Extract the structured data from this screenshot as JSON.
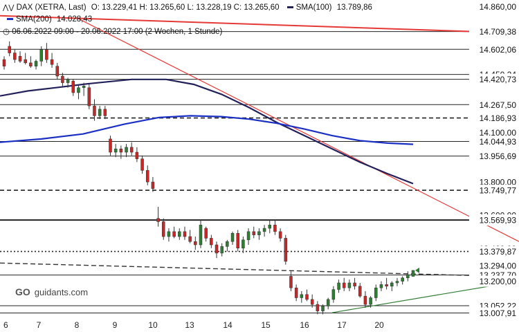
{
  "header": {
    "instrument": "DAX (XETRA, Last)",
    "ohlc": "O: 13.229,41  H: 13.265,60  L: 13.228,19  C: 13.265,60",
    "sma100_label": "SMA(100)",
    "sma100_value": "13.789,86",
    "sma200_label": "SMA(200)",
    "sma200_value": "14.028,43",
    "period": "06.06.2022 09:00 - 20.06.2022 17:00  (2 Wochen, 1 Stunde)"
  },
  "branding": {
    "logo_text": "guidants.com"
  },
  "colors": {
    "up": "#2e7d32",
    "down": "#c62828",
    "sma100": "#22205a",
    "sma200": "#1a2fc4",
    "trend_red": "#e53935",
    "trend_green": "#2e7d32",
    "grid_line": "#222222"
  },
  "chart_data": {
    "type": "candlestick",
    "ylim": [
      12960,
      14900
    ],
    "x_labels": [
      "6",
      "7",
      "8",
      "9",
      "10",
      "13",
      "14",
      "15",
      "16",
      "17",
      "20"
    ],
    "price_labels": [
      "14.860,00",
      "14.709,38",
      "14.602,06",
      "14.450,24",
      "14.420,73",
      "14.267,50",
      "14.186,93",
      "14.100,00",
      "14.044,93",
      "13.956,69",
      "13.800,00",
      "13.749,77",
      "13.600,00",
      "13.569,93",
      "13.400,00",
      "13.379,87",
      "13.294,00",
      "13.237,70",
      "13.200,00",
      "13.052,22",
      "13.007,91"
    ],
    "levels": [
      {
        "value": 14709.38,
        "style": "solid"
      },
      {
        "value": 14602.06,
        "style": "solid"
      },
      {
        "value": 14450.24,
        "style": "solid"
      },
      {
        "value": 14420.73,
        "style": "solid"
      },
      {
        "value": 14267.5,
        "style": "solid"
      },
      {
        "value": 14186.93,
        "style": "dashed"
      },
      {
        "value": 14044.93,
        "style": "solid"
      },
      {
        "value": 13956.69,
        "style": "solid"
      },
      {
        "value": 13749.77,
        "style": "dashed"
      },
      {
        "value": 13569.93,
        "style": "thick"
      },
      {
        "value": 13379.87,
        "style": "dotted"
      },
      {
        "value": 13237.7,
        "style": "solid"
      },
      {
        "value": 13052.22,
        "style": "solid"
      },
      {
        "value": 13007.91,
        "style": "solid"
      }
    ],
    "candles": [
      [
        14540,
        14560,
        14480,
        14500
      ],
      [
        14620,
        14650,
        14560,
        14580
      ],
      [
        14580,
        14600,
        14520,
        14540
      ],
      [
        14560,
        14590,
        14520,
        14530
      ],
      [
        14540,
        14580,
        14510,
        14520
      ],
      [
        14520,
        14560,
        14490,
        14500
      ],
      [
        14500,
        14540,
        14480,
        14530
      ],
      [
        14530,
        14620,
        14500,
        14600
      ],
      [
        14600,
        14640,
        14520,
        14540
      ],
      [
        14540,
        14580,
        14490,
        14510
      ],
      [
        14500,
        14520,
        14420,
        14440
      ],
      [
        14440,
        14460,
        14380,
        14400
      ],
      [
        14400,
        14430,
        14370,
        14420
      ],
      [
        14410,
        14420,
        14320,
        14340
      ],
      [
        14340,
        14390,
        14300,
        14370
      ],
      [
        14370,
        14400,
        14320,
        14380
      ],
      [
        14370,
        14390,
        14240,
        14260
      ],
      [
        14260,
        14300,
        14170,
        14200
      ],
      [
        14200,
        14260,
        14180,
        14240
      ],
      [
        14240,
        14260,
        14180,
        14200
      ],
      [
        14060,
        14080,
        13960,
        13980
      ],
      [
        13980,
        14030,
        13950,
        14000
      ],
      [
        14000,
        14020,
        13940,
        13980
      ],
      [
        13980,
        14030,
        13950,
        14010
      ],
      [
        14010,
        14040,
        13960,
        13980
      ],
      [
        13980,
        14010,
        13920,
        13940
      ],
      [
        13940,
        13960,
        13850,
        13870
      ],
      [
        13870,
        13900,
        13780,
        13800
      ],
      [
        13800,
        13830,
        13740,
        13760
      ],
      [
        13580,
        13650,
        13530,
        13560
      ],
      [
        13560,
        13580,
        13450,
        13470
      ],
      [
        13470,
        13520,
        13440,
        13500
      ],
      [
        13500,
        13530,
        13460,
        13470
      ],
      [
        13470,
        13520,
        13450,
        13500
      ],
      [
        13500,
        13530,
        13450,
        13470
      ],
      [
        13470,
        13510,
        13430,
        13440
      ],
      [
        13440,
        13470,
        13390,
        13420
      ],
      [
        13420,
        13570,
        13400,
        13540
      ],
      [
        13520,
        13530,
        13440,
        13460
      ],
      [
        13460,
        13480,
        13400,
        13420
      ],
      [
        13420,
        13440,
        13340,
        13370
      ],
      [
        13370,
        13430,
        13350,
        13410
      ],
      [
        13410,
        13450,
        13380,
        13440
      ],
      [
        13440,
        13500,
        13420,
        13490
      ],
      [
        13490,
        13510,
        13380,
        13400
      ],
      [
        13400,
        13470,
        13370,
        13450
      ],
      [
        13450,
        13520,
        13420,
        13500
      ],
      [
        13500,
        13530,
        13460,
        13480
      ],
      [
        13480,
        13520,
        13450,
        13500
      ],
      [
        13500,
        13540,
        13470,
        13520
      ],
      [
        13520,
        13570,
        13490,
        13540
      ],
      [
        13540,
        13570,
        13480,
        13500
      ],
      [
        13500,
        13520,
        13440,
        13460
      ],
      [
        13460,
        13480,
        13300,
        13320
      ],
      [
        13230,
        13260,
        13140,
        13160
      ],
      [
        13160,
        13180,
        13080,
        13100
      ],
      [
        13100,
        13140,
        13070,
        13120
      ],
      [
        13120,
        13150,
        13080,
        13090
      ],
      [
        13090,
        13120,
        13040,
        13060
      ],
      [
        13060,
        13080,
        13000,
        13020
      ],
      [
        13020,
        13060,
        13000,
        13050
      ],
      [
        13050,
        13100,
        13030,
        13090
      ],
      [
        13090,
        13170,
        13070,
        13150
      ],
      [
        13150,
        13210,
        13130,
        13190
      ],
      [
        13190,
        13220,
        13140,
        13160
      ],
      [
        13160,
        13210,
        13140,
        13190
      ],
      [
        13190,
        13220,
        13150,
        13170
      ],
      [
        13170,
        13190,
        13100,
        13110
      ],
      [
        13110,
        13140,
        13040,
        13060
      ],
      [
        13060,
        13110,
        13040,
        13100
      ],
      [
        13100,
        13180,
        13080,
        13160
      ],
      [
        13160,
        13200,
        13140,
        13180
      ],
      [
        13180,
        13220,
        13150,
        13170
      ],
      [
        13170,
        13200,
        13140,
        13190
      ],
      [
        13190,
        13220,
        13170,
        13200
      ],
      [
        13200,
        13230,
        13180,
        13220
      ],
      [
        13220,
        13260,
        13200,
        13240
      ],
      [
        13229.41,
        13265.6,
        13228.19,
        13265.6
      ]
    ],
    "sma100": [
      [
        0,
        14320
      ],
      [
        40,
        14350
      ],
      [
        80,
        14370
      ],
      [
        130,
        14395
      ],
      [
        190,
        14420
      ],
      [
        240,
        14420
      ],
      [
        280,
        14390
      ],
      [
        320,
        14330
      ],
      [
        360,
        14250
      ],
      [
        400,
        14160
      ],
      [
        440,
        14080
      ],
      [
        480,
        14000
      ],
      [
        520,
        13920
      ],
      [
        560,
        13850
      ],
      [
        597,
        13790
      ]
    ],
    "sma200": [
      [
        0,
        14040
      ],
      [
        60,
        14060
      ],
      [
        120,
        14090
      ],
      [
        180,
        14150
      ],
      [
        230,
        14190
      ],
      [
        275,
        14200
      ],
      [
        320,
        14195
      ],
      [
        360,
        14180
      ],
      [
        400,
        14155
      ],
      [
        440,
        14120
      ],
      [
        480,
        14080
      ],
      [
        520,
        14050
      ],
      [
        560,
        14035
      ],
      [
        597,
        14028
      ]
    ],
    "trend_red_steep": [
      [
        112,
        14790
      ],
      [
        750,
        13440
      ]
    ],
    "trend_red_flat": [
      [
        0,
        14805
      ],
      [
        750,
        14700
      ]
    ],
    "trend_dashed": [
      [
        0,
        13310
      ],
      [
        680,
        13235
      ]
    ],
    "trend_green": [
      [
        480,
        13010
      ],
      [
        750,
        13200
      ]
    ]
  }
}
